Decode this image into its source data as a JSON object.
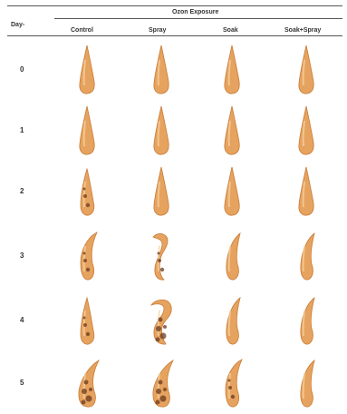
{
  "table": {
    "row_header": "Day-",
    "group_header": "Ozon Exposure",
    "columns": [
      "Control",
      "Spray",
      "Soak",
      "Soak+Spray"
    ],
    "days": [
      "0",
      "1",
      "2",
      "3",
      "4",
      "5"
    ]
  },
  "colors": {
    "fresh": "#e6a35f",
    "fresh_edge": "#c97b36",
    "decay": "#6b3a1f",
    "highlight": "#f7d3a3"
  },
  "specimens": [
    [
      "fresh",
      "fresh",
      "fresh",
      "fresh"
    ],
    [
      "fresh",
      "fresh",
      "fresh",
      "fresh"
    ],
    [
      "spotted",
      "fresh",
      "fresh",
      "fresh"
    ],
    [
      "curled-spotted",
      "hooked-spotted",
      "curled",
      "curled"
    ],
    [
      "spotted",
      "hooked-decayed",
      "curled",
      "curled"
    ],
    [
      "decayed",
      "decayed",
      "curled-spotted",
      "curled"
    ]
  ]
}
